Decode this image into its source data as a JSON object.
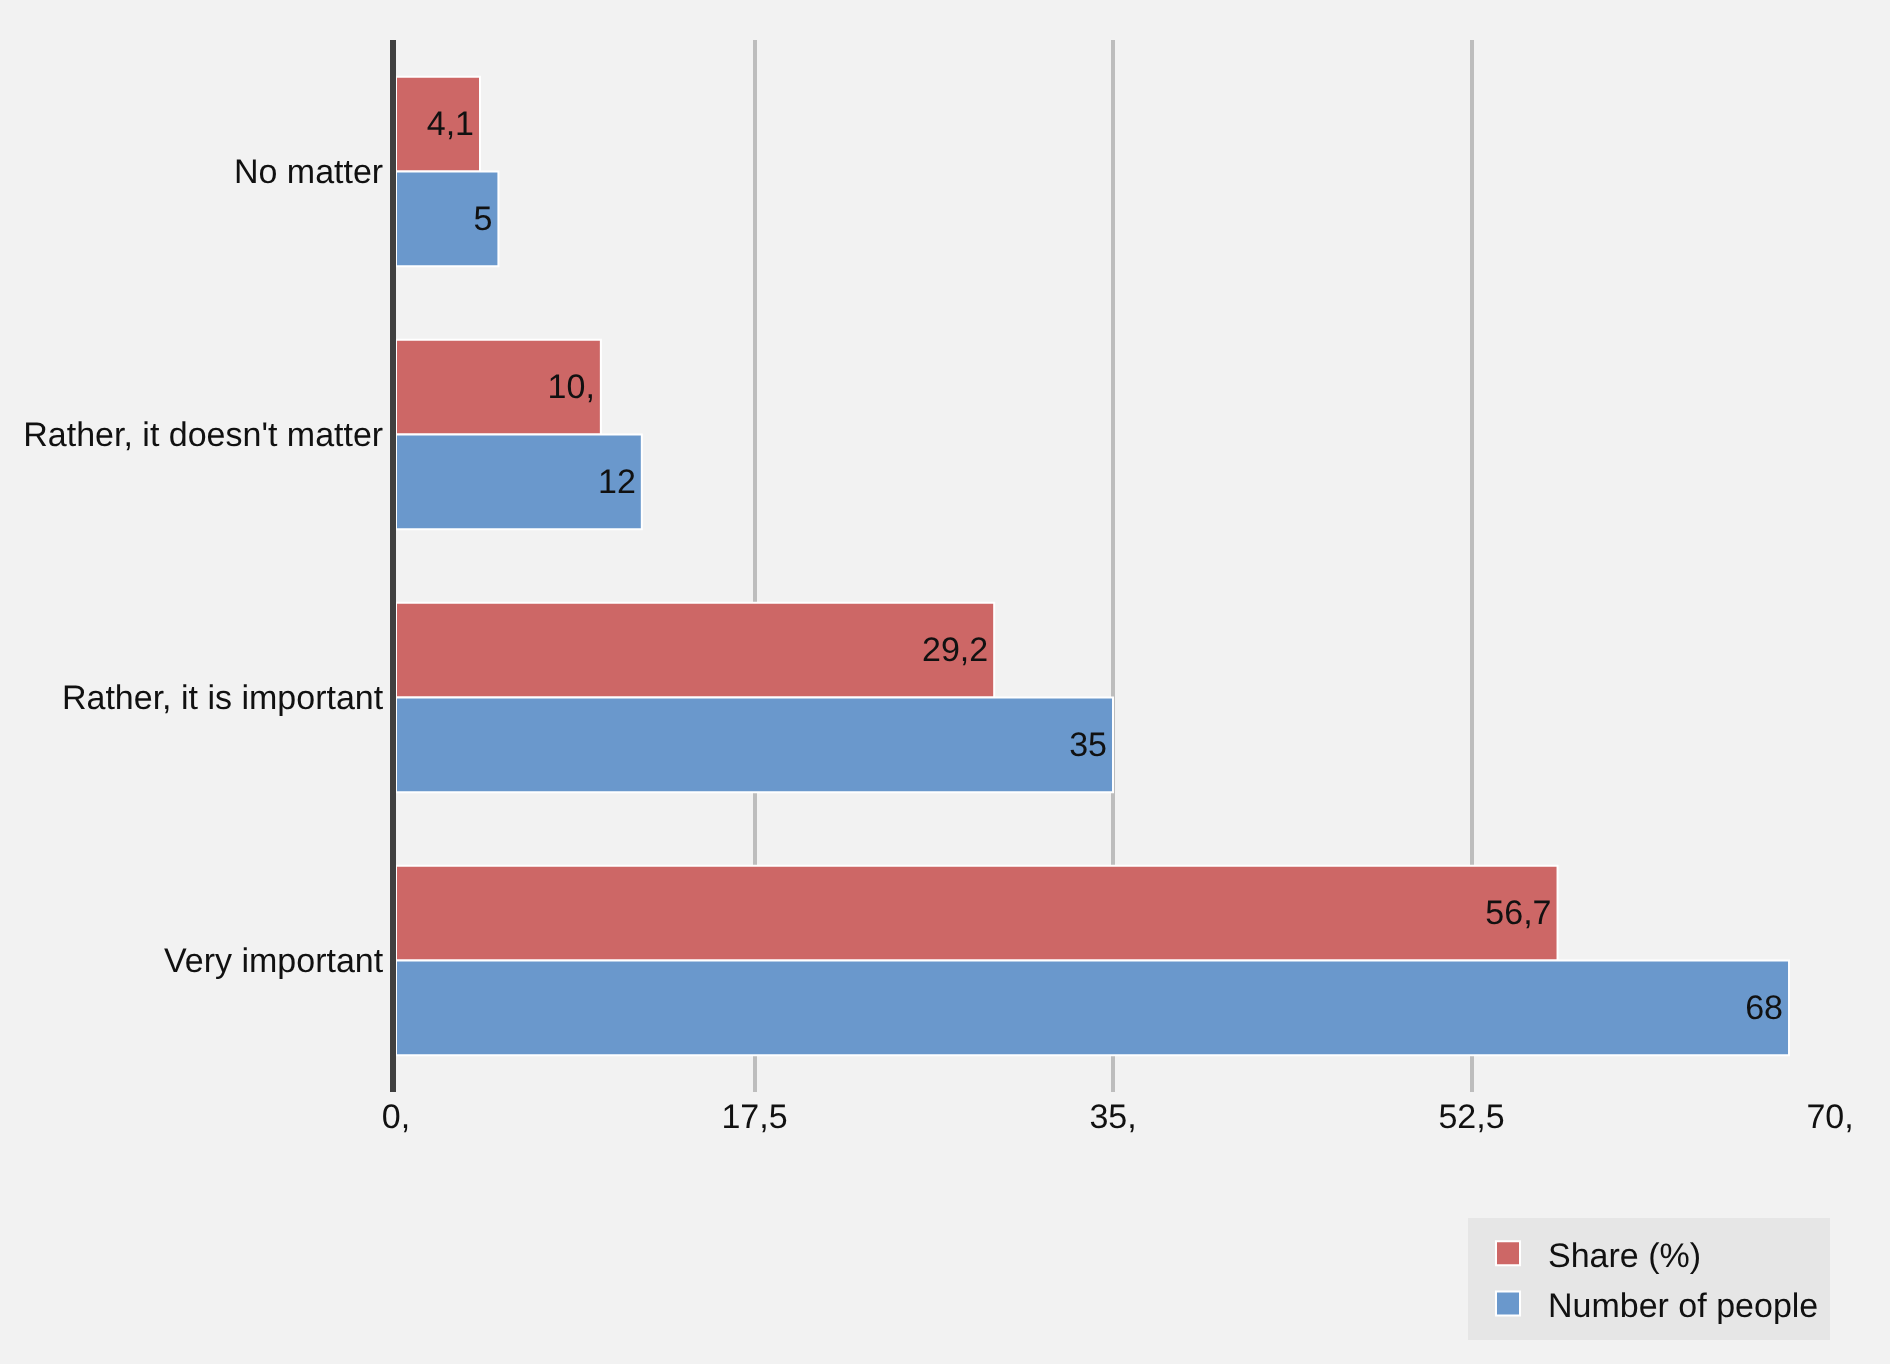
{
  "chart_data": {
    "type": "bar",
    "orientation": "horizontal",
    "categories": [
      "No matter",
      "Rather, it doesn't matter",
      "Rather, it is important",
      "Very important"
    ],
    "series": [
      {
        "name": "Share (%)",
        "color": "#cd6766",
        "values": [
          4.1,
          10,
          29.2,
          56.7
        ],
        "value_labels": [
          "4,1",
          "10,",
          "29,2",
          "56,7"
        ]
      },
      {
        "name": "Number of people",
        "color": "#6a98cc",
        "values": [
          5,
          12,
          35,
          68
        ],
        "value_labels": [
          "5",
          "12",
          "35",
          "68"
        ]
      }
    ],
    "xlim": [
      0,
      70
    ],
    "xticks": [
      {
        "value": 0,
        "label": "0,"
      },
      {
        "value": 17.5,
        "label": "17,5"
      },
      {
        "value": 35,
        "label": "35,"
      },
      {
        "value": 52.5,
        "label": "52,5"
      },
      {
        "value": 70,
        "label": "70,"
      }
    ],
    "grid": "x",
    "legend": "bottom right"
  }
}
